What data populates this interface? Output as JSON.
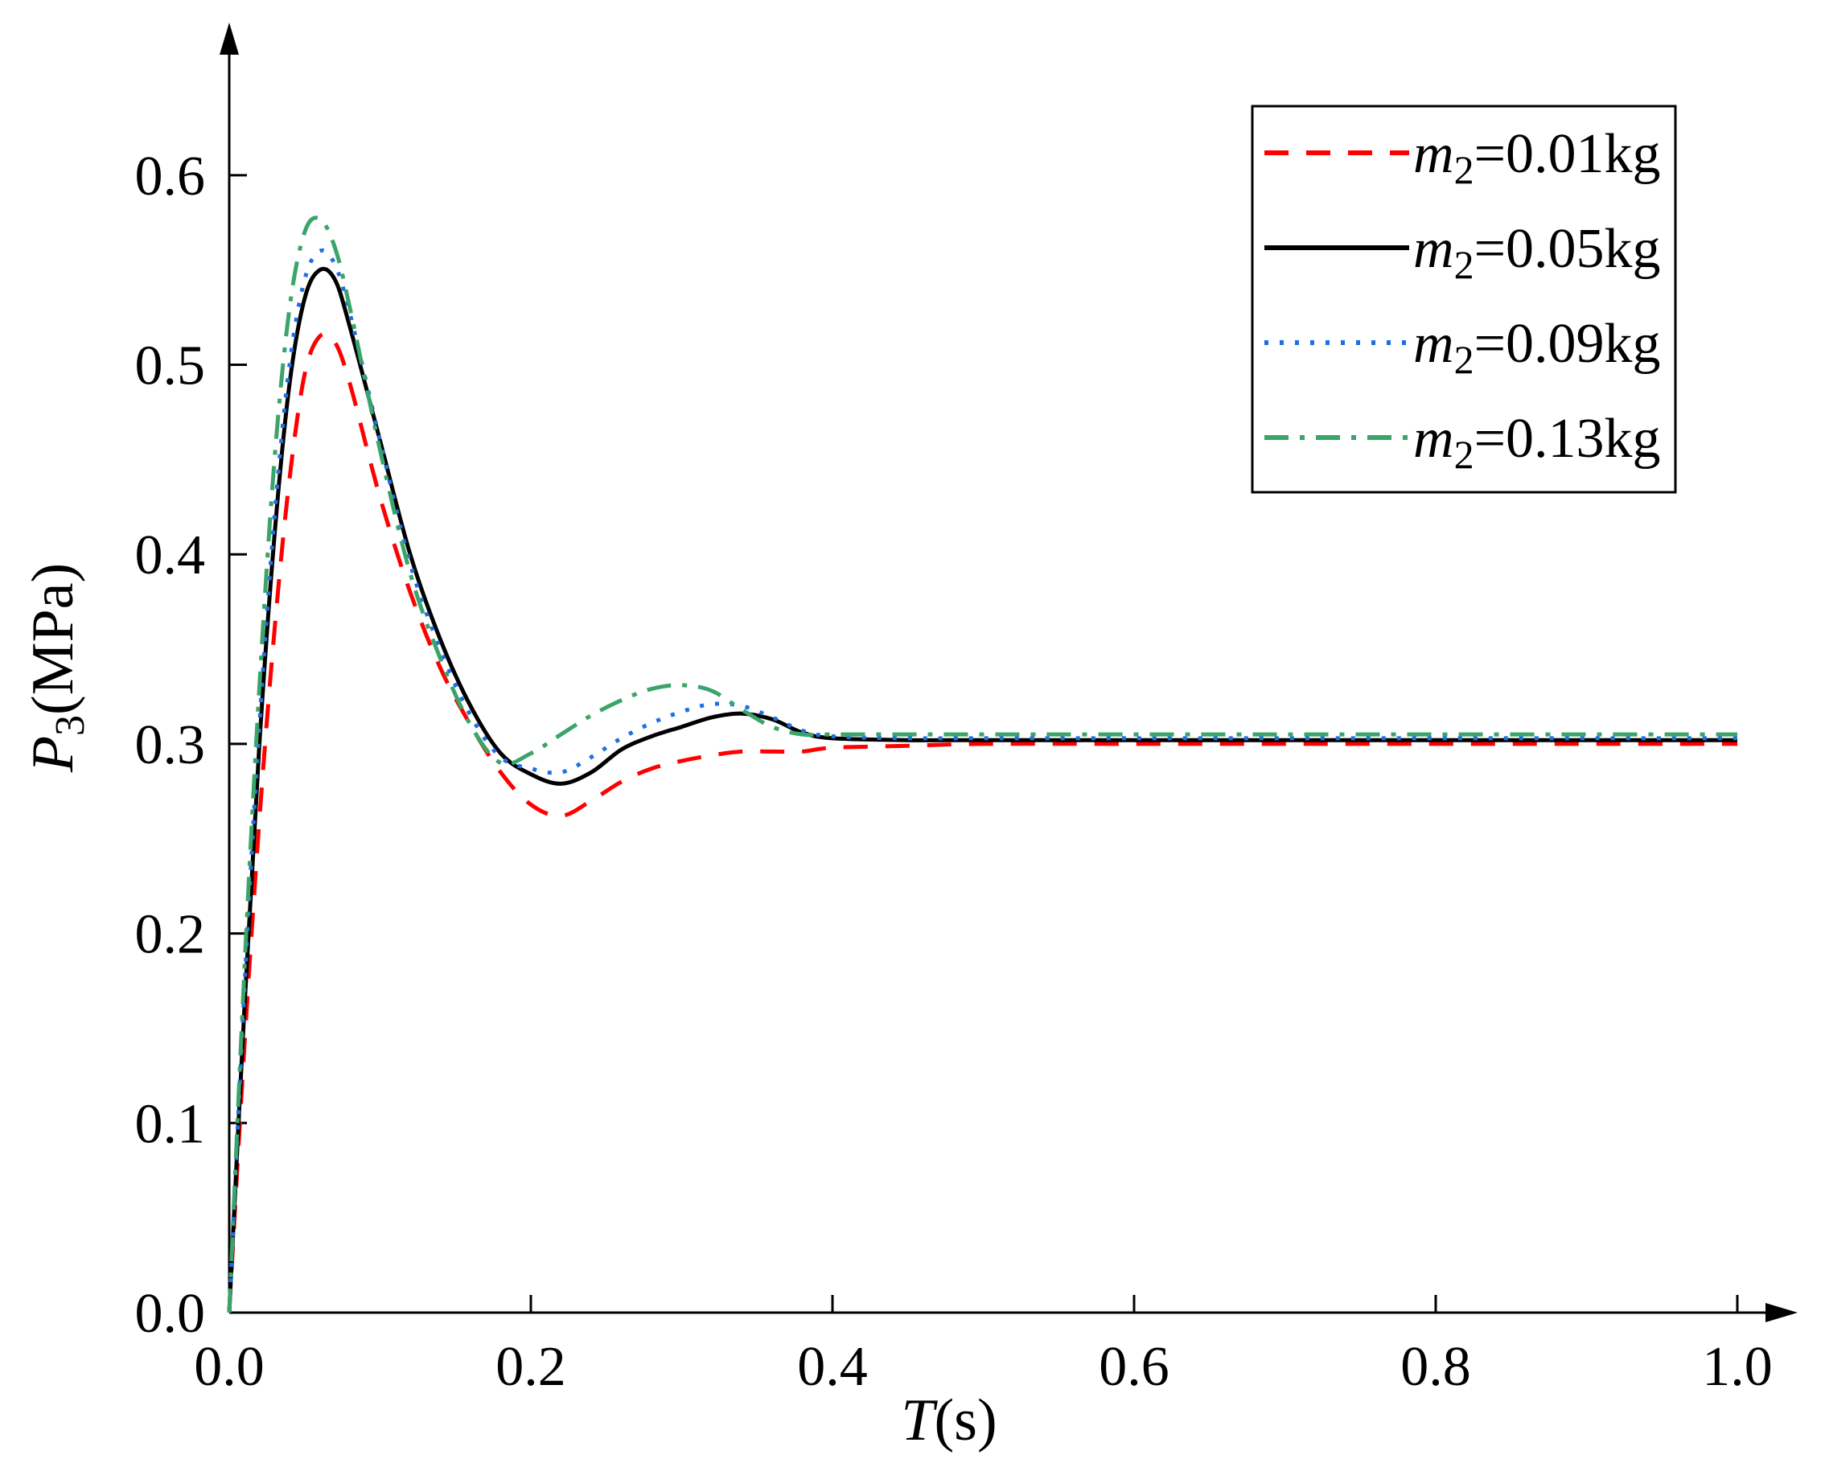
{
  "chart_data": {
    "type": "line",
    "title": "",
    "xlabel": {
      "var": "T",
      "unit": "(s)"
    },
    "ylabel": {
      "var": "P",
      "sub": "3",
      "unit": "(MPa)"
    },
    "xlim": [
      0.0,
      1.0
    ],
    "ylim": [
      0.0,
      0.65
    ],
    "xticks": [
      "0.0",
      "0.2",
      "0.4",
      "0.6",
      "0.8",
      "1.0"
    ],
    "yticks": [
      "0.0",
      "0.1",
      "0.2",
      "0.3",
      "0.4",
      "0.5",
      "0.6"
    ],
    "grid": false,
    "legend_position": "top-right",
    "series": [
      {
        "name_var": "m",
        "name_sub": "2",
        "name_rest": "=0.01kg",
        "color": "#ff0000",
        "dash": "30,22",
        "x": [
          0.0,
          0.01,
          0.02,
          0.03,
          0.04,
          0.05,
          0.06,
          0.07,
          0.08,
          0.1,
          0.12,
          0.14,
          0.16,
          0.18,
          0.2,
          0.22,
          0.24,
          0.26,
          0.28,
          0.3,
          0.32,
          0.34,
          0.36,
          0.38,
          0.4,
          0.45,
          0.5,
          0.6,
          0.7,
          0.8,
          0.9,
          1.0
        ],
        "y": [
          0.0,
          0.14,
          0.26,
          0.36,
          0.44,
          0.495,
          0.515,
          0.512,
          0.49,
          0.43,
          0.38,
          0.34,
          0.31,
          0.285,
          0.268,
          0.262,
          0.27,
          0.28,
          0.287,
          0.291,
          0.294,
          0.296,
          0.296,
          0.296,
          0.298,
          0.299,
          0.3,
          0.3,
          0.3,
          0.3,
          0.3,
          0.3
        ]
      },
      {
        "name_var": "m",
        "name_sub": "2",
        "name_rest": "=0.05kg",
        "color": "#000000",
        "dash": "",
        "x": [
          0.0,
          0.01,
          0.02,
          0.03,
          0.04,
          0.05,
          0.06,
          0.07,
          0.08,
          0.1,
          0.12,
          0.14,
          0.16,
          0.18,
          0.2,
          0.22,
          0.24,
          0.26,
          0.28,
          0.3,
          0.32,
          0.34,
          0.36,
          0.38,
          0.4,
          0.45,
          0.5,
          0.6,
          0.7,
          0.8,
          0.9,
          1.0
        ],
        "y": [
          0.0,
          0.16,
          0.3,
          0.41,
          0.49,
          0.535,
          0.55,
          0.545,
          0.52,
          0.46,
          0.4,
          0.355,
          0.32,
          0.295,
          0.284,
          0.279,
          0.285,
          0.297,
          0.304,
          0.309,
          0.314,
          0.316,
          0.313,
          0.306,
          0.303,
          0.302,
          0.302,
          0.302,
          0.302,
          0.302,
          0.302,
          0.302
        ]
      },
      {
        "name_var": "m",
        "name_sub": "2",
        "name_rest": "=0.09kg",
        "color": "#1f6fe0",
        "dash": "5,14",
        "x": [
          0.0,
          0.01,
          0.02,
          0.03,
          0.04,
          0.05,
          0.06,
          0.07,
          0.08,
          0.1,
          0.12,
          0.14,
          0.16,
          0.18,
          0.2,
          0.22,
          0.24,
          0.26,
          0.28,
          0.3,
          0.32,
          0.34,
          0.36,
          0.38,
          0.4,
          0.45,
          0.5,
          0.6,
          0.7,
          0.8,
          0.9,
          1.0
        ],
        "y": [
          0.0,
          0.17,
          0.31,
          0.42,
          0.5,
          0.545,
          0.56,
          0.553,
          0.527,
          0.46,
          0.395,
          0.35,
          0.315,
          0.293,
          0.287,
          0.285,
          0.293,
          0.303,
          0.311,
          0.317,
          0.321,
          0.32,
          0.314,
          0.307,
          0.304,
          0.303,
          0.303,
          0.303,
          0.303,
          0.303,
          0.303,
          0.303
        ]
      },
      {
        "name_var": "m",
        "name_sub": "2",
        "name_rest": "=0.13kg",
        "color": "#3aa46a",
        "dash": "30,14,6,14",
        "x": [
          0.0,
          0.01,
          0.02,
          0.03,
          0.04,
          0.05,
          0.06,
          0.07,
          0.08,
          0.1,
          0.12,
          0.14,
          0.16,
          0.18,
          0.2,
          0.22,
          0.24,
          0.26,
          0.28,
          0.3,
          0.32,
          0.34,
          0.36,
          0.38,
          0.4,
          0.45,
          0.5,
          0.6,
          0.7,
          0.8,
          0.9,
          1.0
        ],
        "y": [
          0.0,
          0.18,
          0.33,
          0.45,
          0.53,
          0.57,
          0.577,
          0.562,
          0.53,
          0.455,
          0.39,
          0.345,
          0.31,
          0.29,
          0.295,
          0.305,
          0.315,
          0.323,
          0.329,
          0.331,
          0.328,
          0.318,
          0.309,
          0.305,
          0.305,
          0.305,
          0.305,
          0.305,
          0.305,
          0.305,
          0.305,
          0.305
        ]
      }
    ]
  }
}
